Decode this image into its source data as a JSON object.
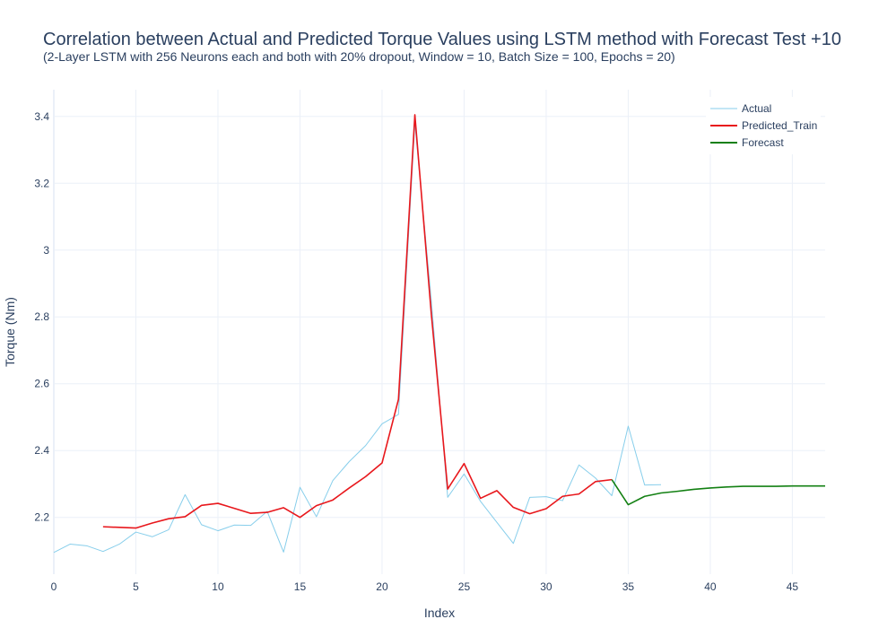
{
  "chart_data": {
    "type": "line",
    "title": "Correlation between Actual and Predicted Torque Values using LSTM method with Forecast Test +10",
    "subtitle": "(2-Layer LSTM with 256 Neurons each and both with 20% dropout, Window = 10, Batch Size = 100, Epochs = 20)",
    "xlabel": "Index",
    "ylabel": "Torque (Nm)",
    "xlim": [
      0,
      47
    ],
    "ylim": [
      2.03,
      3.48
    ],
    "x_ticks": [
      "0",
      "5",
      "10",
      "15",
      "20",
      "25",
      "30",
      "35",
      "40",
      "45"
    ],
    "y_ticks": [
      "2.2",
      "2.4",
      "2.6",
      "2.8",
      "3",
      "3.2",
      "3.4"
    ],
    "grid": true,
    "legend_position": "top-right",
    "series": [
      {
        "name": "Actual",
        "color": "#87ceeb",
        "x": [
          0,
          1,
          2,
          3,
          4,
          5,
          6,
          7,
          8,
          9,
          10,
          11,
          12,
          13,
          14,
          15,
          16,
          17,
          18,
          19,
          20,
          21,
          22,
          23,
          24,
          25,
          26,
          27,
          28,
          29,
          30,
          31,
          32,
          33,
          34,
          35,
          36,
          37
        ],
        "y": [
          2.095,
          2.12,
          2.115,
          2.098,
          2.12,
          2.156,
          2.142,
          2.163,
          2.268,
          2.178,
          2.16,
          2.177,
          2.176,
          2.218,
          2.096,
          2.29,
          2.202,
          2.31,
          2.367,
          2.415,
          2.48,
          2.508,
          3.38,
          2.85,
          2.26,
          2.33,
          2.248,
          2.185,
          2.122,
          2.26,
          2.262,
          2.25,
          2.357,
          2.318,
          2.265,
          2.473,
          2.297,
          2.298
        ]
      },
      {
        "name": "Predicted_Train",
        "color": "#e8171c",
        "x": [
          3,
          4,
          5,
          6,
          7,
          8,
          9,
          10,
          11,
          12,
          13,
          14,
          15,
          16,
          17,
          18,
          19,
          20,
          21,
          22,
          23,
          24,
          25,
          26,
          27,
          28,
          29,
          30,
          31,
          32,
          33,
          34
        ],
        "y": [
          2.172,
          2.17,
          2.168,
          2.183,
          2.196,
          2.202,
          2.236,
          2.242,
          2.227,
          2.212,
          2.215,
          2.229,
          2.2,
          2.235,
          2.252,
          2.288,
          2.322,
          2.363,
          2.553,
          3.405,
          2.81,
          2.285,
          2.361,
          2.257,
          2.28,
          2.23,
          2.211,
          2.226,
          2.263,
          2.27,
          2.307,
          2.313
        ]
      },
      {
        "name": "Forecast",
        "color": "#138013",
        "x": [
          34,
          35,
          36,
          37,
          38,
          39,
          40,
          41,
          42,
          43,
          44,
          45,
          46,
          47
        ],
        "y": [
          2.313,
          2.238,
          2.263,
          2.273,
          2.278,
          2.284,
          2.288,
          2.291,
          2.293,
          2.293,
          2.293,
          2.294,
          2.294,
          2.294
        ]
      }
    ]
  }
}
